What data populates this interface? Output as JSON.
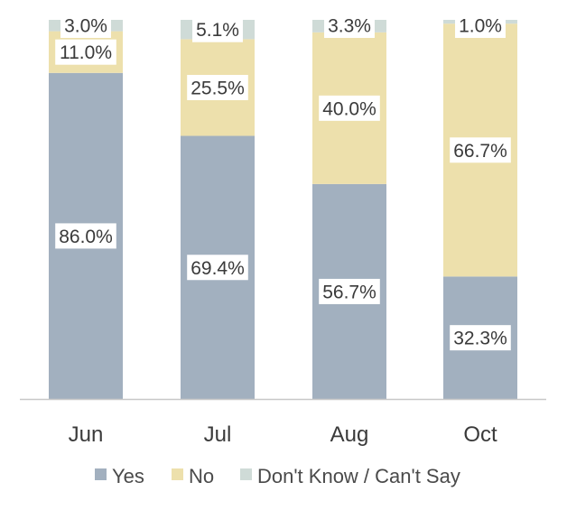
{
  "chart_data": {
    "type": "bar",
    "stacked": true,
    "percent": true,
    "categories": [
      "Jun",
      "Jul",
      "Aug",
      "Oct"
    ],
    "series": [
      {
        "name": "Yes",
        "values": [
          86.0,
          69.4,
          56.7,
          32.3
        ],
        "labels": [
          "86.0%",
          "69.4%",
          "56.7%",
          "32.3%"
        ],
        "color": "#a2b0bf"
      },
      {
        "name": "No",
        "values": [
          11.0,
          25.5,
          40.0,
          66.7
        ],
        "labels": [
          "11.0%",
          "25.5%",
          "40.0%",
          "66.7%"
        ],
        "color": "#ede0ac"
      },
      {
        "name": "Don't Know / Can't Say",
        "values": [
          3.0,
          5.1,
          3.3,
          1.0
        ],
        "labels": [
          "3.0%",
          "5.1%",
          "3.3%",
          "1.0%"
        ],
        "color": "#cfdbd7"
      }
    ],
    "ylim": [
      0,
      100
    ],
    "grid": false,
    "legend_position": "bottom",
    "axis_color": "#c8c8c8",
    "label_box_color": "#ffffff"
  }
}
